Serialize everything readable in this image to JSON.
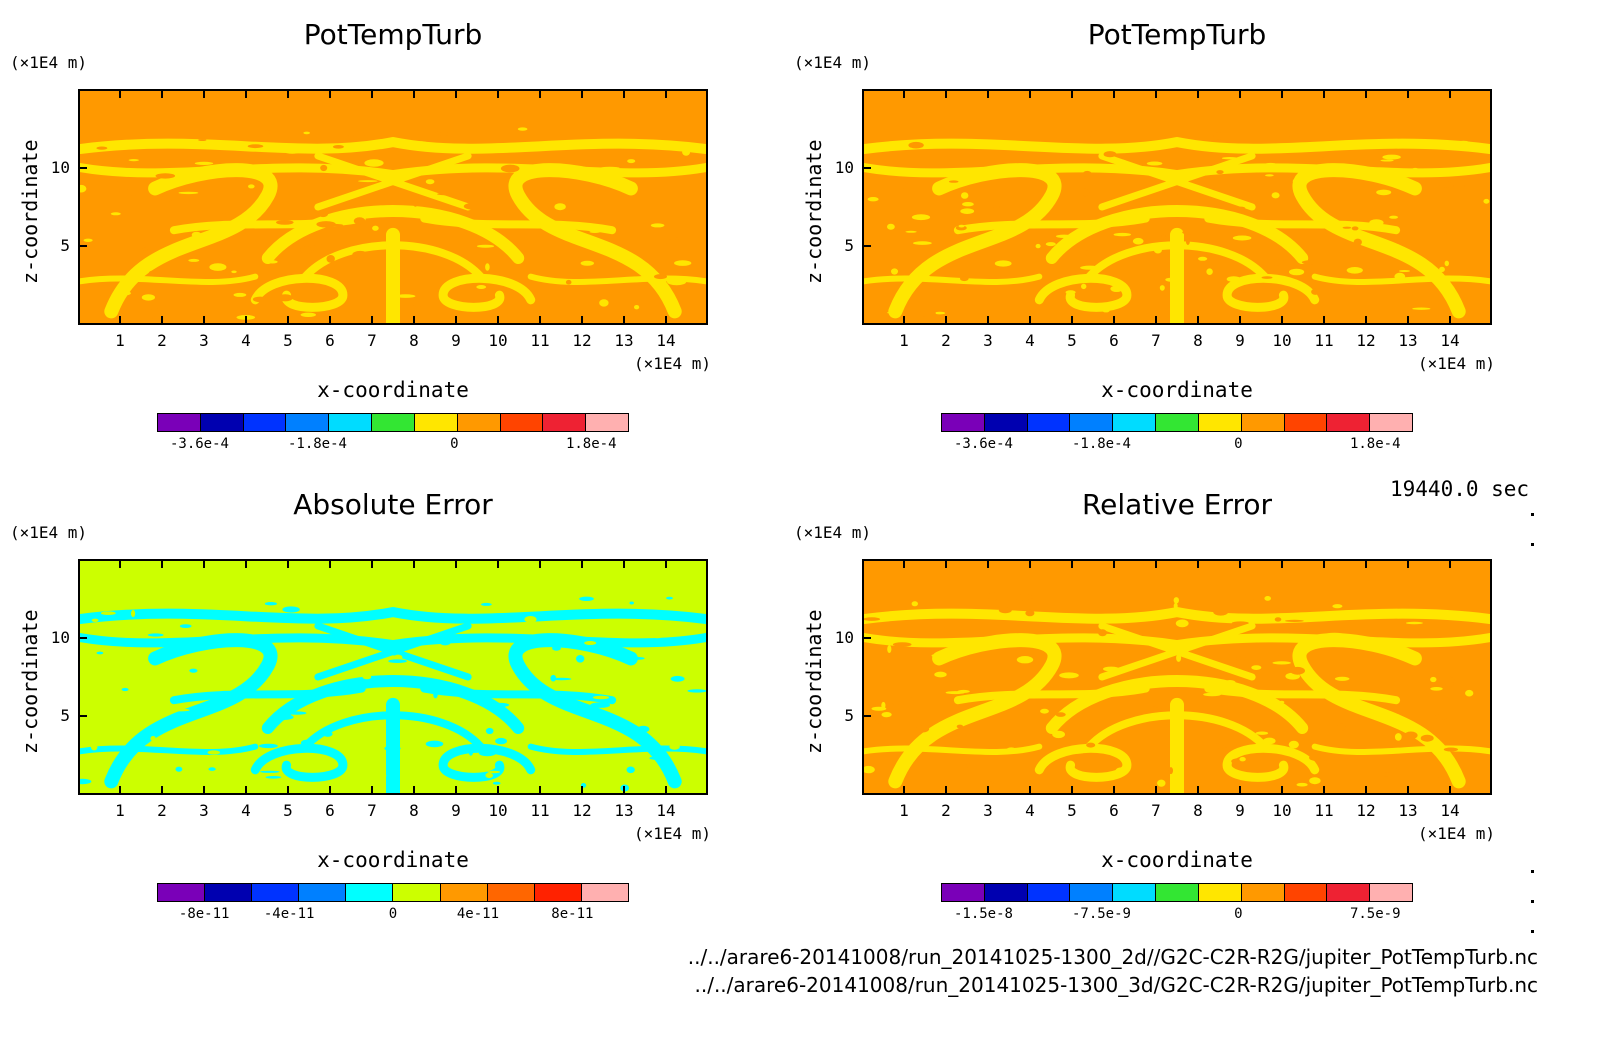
{
  "time_label": "19440.0 sec",
  "files": [
    "../../arare6-20141008/run_20141025-1300_2d//G2C-C2R-R2G/jupiter_PotTempTurb.nc",
    "../../arare6-20141008/run_20141025-1300_3d/G2C-C2R-R2G/jupiter_PotTempTurb.nc"
  ],
  "chart_data": [
    {
      "type": "heatmap",
      "title": "PotTempTurb",
      "xlabel": "x-coordinate",
      "ylabel": "z-coordinate",
      "x_unit": "(×1E4 m)",
      "y_unit": "(×1E4 m)",
      "xlim": [
        0,
        15
      ],
      "ylim": [
        0,
        15
      ],
      "xticks": [
        "1",
        "2",
        "3",
        "4",
        "5",
        "6",
        "7",
        "8",
        "9",
        "10",
        "11",
        "12",
        "13",
        "14"
      ],
      "yticks": [
        "5",
        "10"
      ],
      "colorbar": {
        "colors": [
          "#7a00b8",
          "#0000b0",
          "#0033ff",
          "#0080ff",
          "#00dcff",
          "#33e633",
          "#ffe600",
          "#ff9900",
          "#ff4400",
          "#ee2233",
          "#ffb0b0"
        ],
        "labels": [
          "-3.6e-4",
          "-1.8e-4",
          "0",
          "1.8e-4"
        ]
      },
      "field_colors": {
        "background": "#ff9900",
        "pattern": "#ffe600"
      }
    },
    {
      "type": "heatmap",
      "title": "PotTempTurb",
      "xlabel": "x-coordinate",
      "ylabel": "z-coordinate",
      "x_unit": "(×1E4 m)",
      "y_unit": "(×1E4 m)",
      "xlim": [
        0,
        15
      ],
      "ylim": [
        0,
        15
      ],
      "xticks": [
        "1",
        "2",
        "3",
        "4",
        "5",
        "6",
        "7",
        "8",
        "9",
        "10",
        "11",
        "12",
        "13",
        "14"
      ],
      "yticks": [
        "5",
        "10"
      ],
      "colorbar": {
        "colors": [
          "#7a00b8",
          "#0000b0",
          "#0033ff",
          "#0080ff",
          "#00dcff",
          "#33e633",
          "#ffe600",
          "#ff9900",
          "#ff4400",
          "#ee2233",
          "#ffb0b0"
        ],
        "labels": [
          "-3.6e-4",
          "-1.8e-4",
          "0",
          "1.8e-4"
        ]
      },
      "field_colors": {
        "background": "#ff9900",
        "pattern": "#ffe600"
      }
    },
    {
      "type": "heatmap",
      "title": "Absolute Error",
      "xlabel": "x-coordinate",
      "ylabel": "z-coordinate",
      "x_unit": "(×1E4 m)",
      "y_unit": "(×1E4 m)",
      "xlim": [
        0,
        15
      ],
      "ylim": [
        0,
        15
      ],
      "xticks": [
        "1",
        "2",
        "3",
        "4",
        "5",
        "6",
        "7",
        "8",
        "9",
        "10",
        "11",
        "12",
        "13",
        "14"
      ],
      "yticks": [
        "5",
        "10"
      ],
      "colorbar": {
        "colors": [
          "#7a00b8",
          "#0000b0",
          "#0033ff",
          "#0080ff",
          "#00ffff",
          "#ccff00",
          "#ff9900",
          "#ff6600",
          "#ff2200",
          "#ffb0b0"
        ],
        "labels": [
          "-8e-11",
          "-4e-11",
          "0",
          "4e-11",
          "8e-11"
        ]
      },
      "field_colors": {
        "background": "#ccff00",
        "pattern": "#00ffff"
      }
    },
    {
      "type": "heatmap",
      "title": "Relative Error",
      "xlabel": "x-coordinate",
      "ylabel": "z-coordinate",
      "x_unit": "(×1E4 m)",
      "y_unit": "(×1E4 m)",
      "xlim": [
        0,
        15
      ],
      "ylim": [
        0,
        15
      ],
      "xticks": [
        "1",
        "2",
        "3",
        "4",
        "5",
        "6",
        "7",
        "8",
        "9",
        "10",
        "11",
        "12",
        "13",
        "14"
      ],
      "yticks": [
        "5",
        "10"
      ],
      "colorbar": {
        "colors": [
          "#7a00b8",
          "#0000b0",
          "#0033ff",
          "#0080ff",
          "#00dcff",
          "#33e633",
          "#ffe600",
          "#ff9900",
          "#ff4400",
          "#ee2233",
          "#ffb0b0"
        ],
        "labels": [
          "-1.5e-8",
          "-7.5e-9",
          "0",
          "7.5e-9"
        ]
      },
      "field_colors": {
        "background": "#ff9900",
        "pattern": "#ffe600"
      }
    }
  ]
}
